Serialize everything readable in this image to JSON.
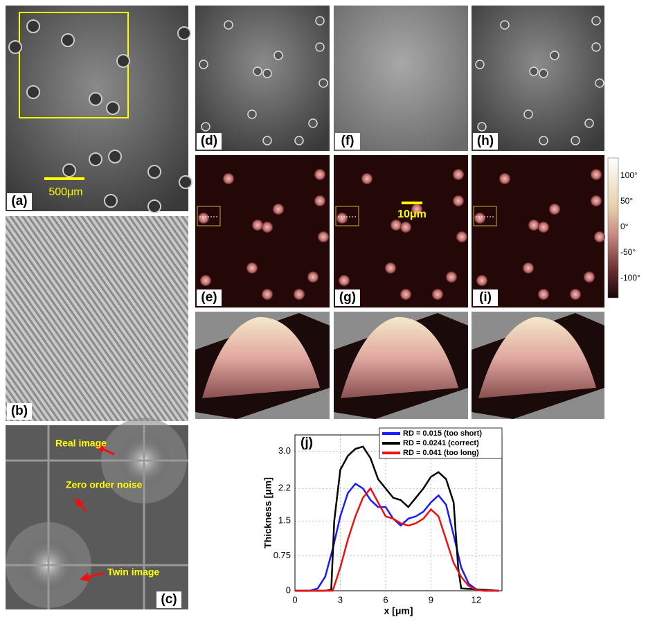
{
  "panel_labels": [
    "(a)",
    "(b)",
    "(c)",
    "(d)",
    "(e)",
    "(f)",
    "(g)",
    "(h)",
    "(i)"
  ],
  "scale_bars": [
    "500μm",
    "10μm"
  ],
  "fft_labels": [
    "Real image",
    "Zero order noise",
    "Twin image"
  ],
  "colorbar_ticks": [
    "100°",
    "50°",
    "0°",
    "-50°",
    "-100°"
  ],
  "chart_data": {
    "type": "line",
    "panel_label": "(j)",
    "x_label": "x [μm]",
    "y_label": "Thickness [μm]",
    "xlim": [
      0,
      13.7
    ],
    "ylim": [
      0,
      3.35
    ],
    "xticks": [
      0,
      3,
      6,
      9,
      12
    ],
    "yticks": [
      0,
      0.75,
      1.5,
      2.2,
      {
        "value": 3,
        "label": "3.0"
      }
    ],
    "grid": true,
    "legend": "top-right",
    "series": [
      {
        "name": "RD = 0.015 (too short)",
        "color": "#1a1aff",
        "x": [
          0,
          1,
          1.5,
          2,
          2.5,
          3,
          3.5,
          4,
          4.5,
          5,
          5.5,
          6,
          6.5,
          7,
          7.5,
          8,
          8.5,
          9,
          9.5,
          10,
          10.5,
          11,
          11.5,
          12,
          12.5,
          13.5
        ],
        "values": [
          0,
          0,
          0.05,
          0.3,
          0.9,
          1.6,
          2.1,
          2.3,
          2.2,
          1.95,
          1.8,
          1.8,
          1.55,
          1.4,
          1.55,
          1.6,
          1.7,
          1.9,
          2.05,
          1.85,
          1.2,
          0.5,
          0.15,
          0.03,
          0,
          0
        ]
      },
      {
        "name": "RD = 0.0241 (correct)",
        "color": "#000000",
        "x": [
          0,
          2,
          2.4,
          2.6,
          3,
          3.5,
          4,
          4.5,
          5,
          5.5,
          6,
          6.5,
          7,
          7.5,
          8,
          8.5,
          9,
          9.5,
          10,
          10.5,
          10.8,
          11,
          13.5
        ],
        "values": [
          0,
          0,
          0.02,
          1.5,
          2.6,
          2.9,
          3.05,
          3.1,
          2.85,
          2.4,
          2.2,
          2.0,
          1.95,
          1.8,
          2.0,
          2.2,
          2.45,
          2.55,
          2.4,
          1.9,
          0.5,
          0.05,
          0
        ]
      },
      {
        "name": "RD = 0.041 (too long)",
        "color": "#ee1111",
        "x": [
          0,
          2.5,
          3,
          3.5,
          4,
          4.5,
          5,
          5.5,
          6,
          6.5,
          7,
          7.5,
          8,
          8.5,
          9,
          9.5,
          10,
          10.5,
          11,
          11.5,
          12,
          12.5,
          13.5
        ],
        "values": [
          0,
          0,
          0.5,
          1.1,
          1.6,
          2.0,
          2.2,
          1.9,
          1.6,
          1.55,
          1.45,
          1.4,
          1.45,
          1.55,
          1.75,
          1.6,
          1.1,
          0.6,
          0.3,
          0.1,
          0.02,
          0,
          0
        ]
      }
    ]
  }
}
